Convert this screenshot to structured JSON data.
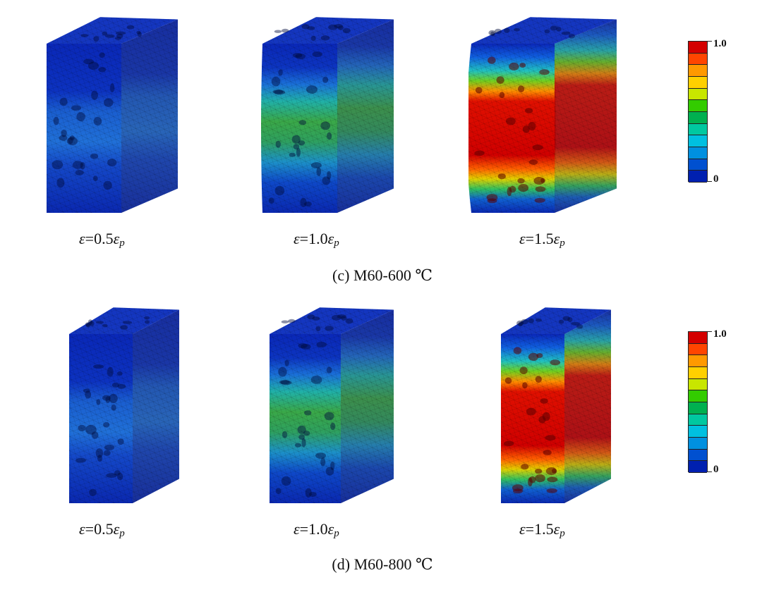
{
  "panels": [
    {
      "caption": "(c) M60-600 ℃",
      "specimens": [
        {
          "strain_factor": "0.5",
          "damage_level": 0.15
        },
        {
          "strain_factor": "1.0",
          "damage_level": 0.45
        },
        {
          "strain_factor": "1.5",
          "damage_level": 0.95
        }
      ],
      "legend": {
        "max_label": "1.0",
        "min_label": "0"
      }
    },
    {
      "caption": "(d) M60-800 ℃",
      "specimens": [
        {
          "strain_factor": "0.5",
          "damage_level": 0.2
        },
        {
          "strain_factor": "1.0",
          "damage_level": 0.45
        },
        {
          "strain_factor": "1.5",
          "damage_level": 0.95
        }
      ],
      "legend": {
        "max_label": "1.0",
        "min_label": "0"
      }
    }
  ],
  "strain_symbol": "ε",
  "peak_subscript": "p",
  "colormap": [
    "#d40000",
    "#ff4500",
    "#ff9900",
    "#ffd000",
    "#c8e600",
    "#33cc00",
    "#00b050",
    "#00c8a0",
    "#00c0e0",
    "#0090e0",
    "#0050d0",
    "#0020b0"
  ]
}
